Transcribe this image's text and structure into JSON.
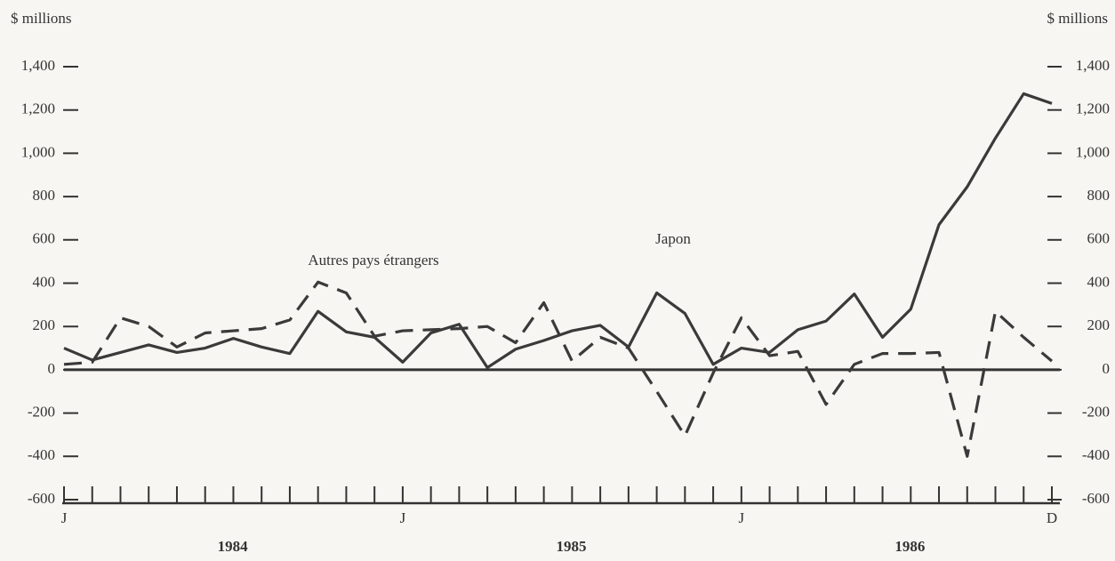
{
  "chart_data": {
    "type": "line",
    "y_label": "$ millions",
    "y2_label": "$ millions",
    "categories": [
      "J",
      null,
      null,
      null,
      null,
      null,
      null,
      null,
      null,
      null,
      null,
      null,
      "J",
      null,
      null,
      null,
      null,
      null,
      null,
      null,
      null,
      null,
      null,
      null,
      "J",
      null,
      null,
      null,
      null,
      null,
      null,
      null,
      null,
      null,
      null,
      "D"
    ],
    "year_labels": [
      "1984",
      "1985",
      "1986"
    ],
    "series": [
      {
        "name": "Japon",
        "color": "#3a3a3a",
        "dashed": false,
        "values": [
          100,
          45,
          80,
          115,
          80,
          100,
          145,
          105,
          75,
          270,
          175,
          150,
          35,
          170,
          210,
          10,
          95,
          135,
          180,
          205,
          105,
          355,
          260,
          25,
          100,
          80,
          185,
          225,
          350,
          150,
          280,
          670,
          845,
          1070,
          1275,
          1230
        ]
      },
      {
        "name": "Autres pays étrangers",
        "color": "#3a3a3a",
        "dashed": true,
        "values": [
          25,
          35,
          240,
          200,
          105,
          170,
          180,
          190,
          230,
          405,
          355,
          155,
          180,
          185,
          190,
          200,
          125,
          310,
          40,
          150,
          100,
          -100,
          -305,
          -15,
          240,
          65,
          85,
          -160,
          25,
          75,
          75,
          80,
          -400,
          270,
          150,
          40
        ]
      }
    ],
    "ylim": [
      -600,
      1400
    ],
    "yticks": [
      {
        "value": 1400,
        "label": "1,400"
      },
      {
        "value": 1200,
        "label": "1,200"
      },
      {
        "value": 1000,
        "label": "1,000"
      },
      800,
      600,
      400,
      200,
      0,
      -200,
      -400,
      -600
    ],
    "y2lim": [
      -600,
      1400
    ],
    "y2ticks": [
      {
        "value": 1400,
        "label": "1,400"
      },
      {
        "value": 1200,
        "label": "1,200"
      },
      {
        "value": 1000,
        "label": "1,000"
      },
      800,
      600,
      400,
      200,
      0,
      -200,
      -400,
      -600
    ]
  }
}
